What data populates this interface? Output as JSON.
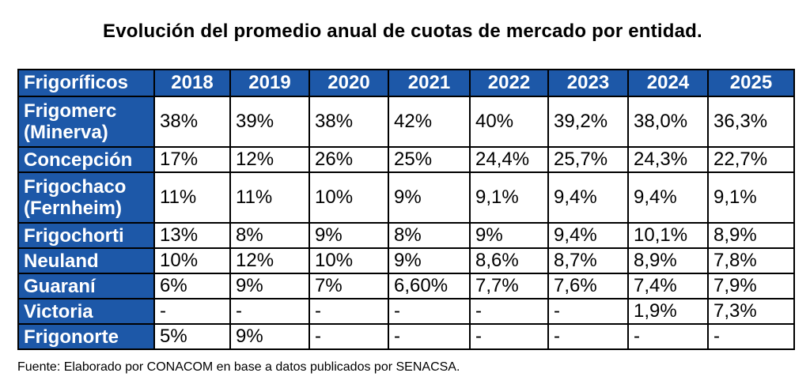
{
  "title": "Evolución del promedio anual de cuotas de mercado por entidad.",
  "table": {
    "header": [
      "Frigoríficos",
      "2018",
      "2019",
      "2020",
      "2021",
      "2022",
      "2023",
      "2024",
      "2025"
    ],
    "rows": [
      {
        "entity": [
          "Frigomerc",
          "(Minerva)"
        ],
        "values": [
          "38%",
          "39%",
          "38%",
          "42%",
          "40%",
          "39,2%",
          "38,0%",
          "36,3%"
        ]
      },
      {
        "entity": [
          "Concepción"
        ],
        "values": [
          "17%",
          "12%",
          "26%",
          "25%",
          "24,4%",
          "25,7%",
          "24,3%",
          "22,7%"
        ]
      },
      {
        "entity": [
          "Frigochaco",
          "(Fernheim)"
        ],
        "values": [
          "11%",
          "11%",
          "10%",
          "9%",
          "9,1%",
          "9,4%",
          "9,4%",
          "9,1%"
        ]
      },
      {
        "entity": [
          "Frigochorti"
        ],
        "values": [
          "13%",
          "8%",
          "9%",
          "8%",
          "9%",
          "9,4%",
          "10,1%",
          "8,9%"
        ]
      },
      {
        "entity": [
          "Neuland"
        ],
        "values": [
          "10%",
          "12%",
          "10%",
          "9%",
          "8,6%",
          "8,7%",
          "8,9%",
          "7,8%"
        ]
      },
      {
        "entity": [
          "Guaraní"
        ],
        "values": [
          "6%",
          "9%",
          "7%",
          "6,60%",
          "7,7%",
          "7,6%",
          "7,4%",
          "7,9%"
        ]
      },
      {
        "entity": [
          "Victoria"
        ],
        "values": [
          "-",
          "-",
          "-",
          "-",
          "-",
          "-",
          "1,9%",
          "7,3%"
        ]
      },
      {
        "entity": [
          "Frigonorte"
        ],
        "values": [
          "5%",
          "9%",
          "-",
          "-",
          "-",
          "-",
          "-",
          "-"
        ]
      }
    ]
  },
  "source": "Fuente: Elaborado por CONACOM en base a datos publicados por SENACSA."
}
